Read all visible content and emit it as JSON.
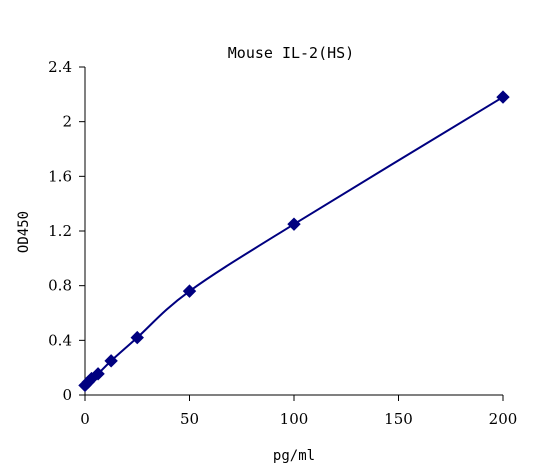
{
  "chart_data": {
    "type": "scatter",
    "title": "Mouse IL-2(HS)",
    "xlabel": "pg/ml",
    "ylabel": "OD450",
    "xlim": [
      0,
      200
    ],
    "ylim": [
      0,
      2.4
    ],
    "x_ticks": [
      0,
      50,
      100,
      150,
      200
    ],
    "y_ticks": [
      0,
      0.4,
      0.8,
      1.2,
      1.6,
      2,
      2.4
    ],
    "y_tick_labels": [
      "0",
      "0.4",
      "0.8",
      "1.2",
      "1.6",
      "2",
      "2.4"
    ],
    "grid": false,
    "legend": "none",
    "marker": "diamond",
    "trendline": "smooth",
    "color": "#000080",
    "series": [
      {
        "x": [
          0,
          1.56,
          3.12,
          6.25,
          12.5,
          25,
          50,
          100,
          200
        ],
        "y": [
          0.07,
          0.095,
          0.12,
          0.155,
          0.25,
          0.42,
          0.76,
          1.25,
          2.18
        ]
      }
    ]
  }
}
